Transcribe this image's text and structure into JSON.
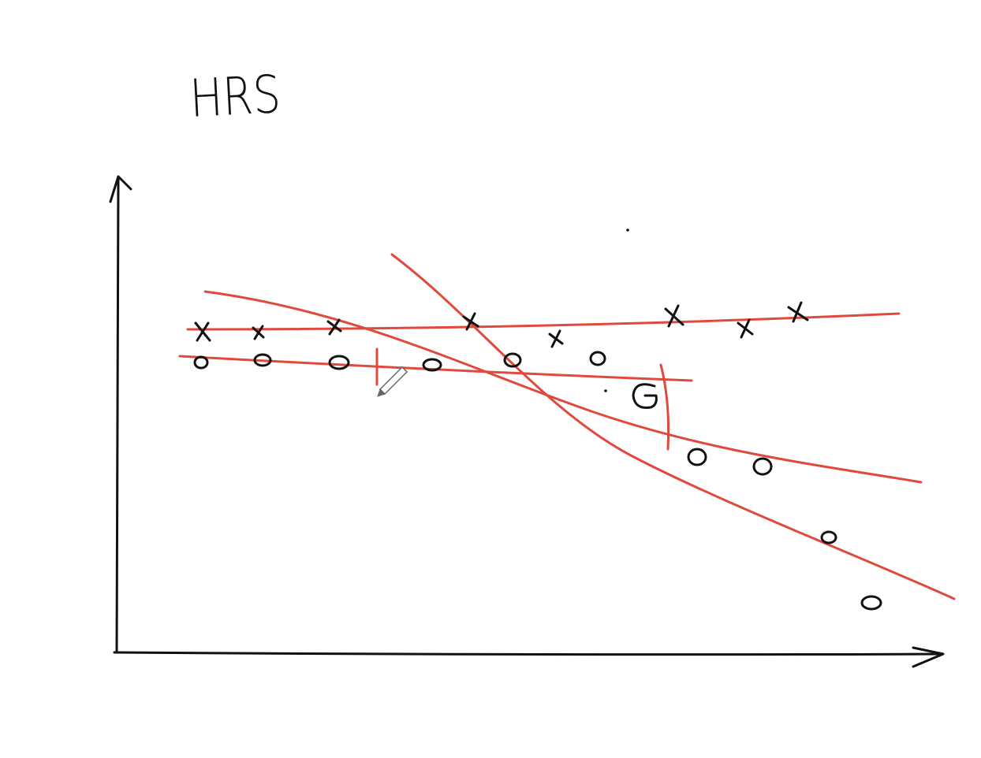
{
  "title": "HRS"
}
